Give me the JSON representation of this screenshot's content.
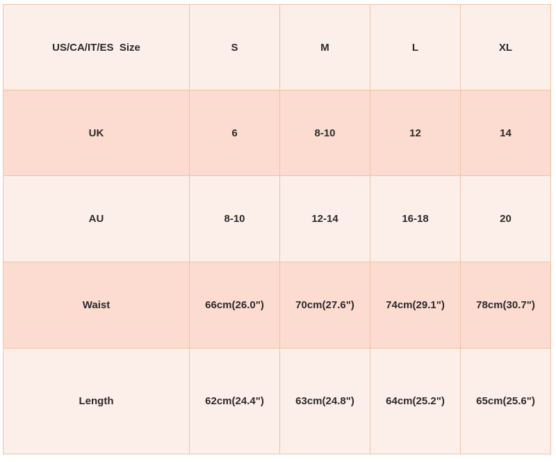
{
  "table": {
    "header": [
      "US/CA/IT/ES  Size",
      "S",
      "M",
      "L",
      "XL"
    ],
    "rows": [
      [
        "UK",
        "6",
        "8-10",
        "12",
        "14"
      ],
      [
        "AU",
        "8-10",
        "12-14",
        "16-18",
        "20"
      ],
      [
        "Waist",
        "66cm(26.0\")",
        "70cm(27.6\")",
        "74cm(29.1\")",
        "78cm(30.7\")"
      ],
      [
        "Length",
        "62cm(24.4\")",
        "63cm(24.8\")",
        "64cm(25.2\")",
        "65cm(25.6\")"
      ]
    ]
  },
  "colors": {
    "light_row": "#fcefea",
    "dark_row": "#fcdcd0",
    "border": "#eec3a3"
  }
}
